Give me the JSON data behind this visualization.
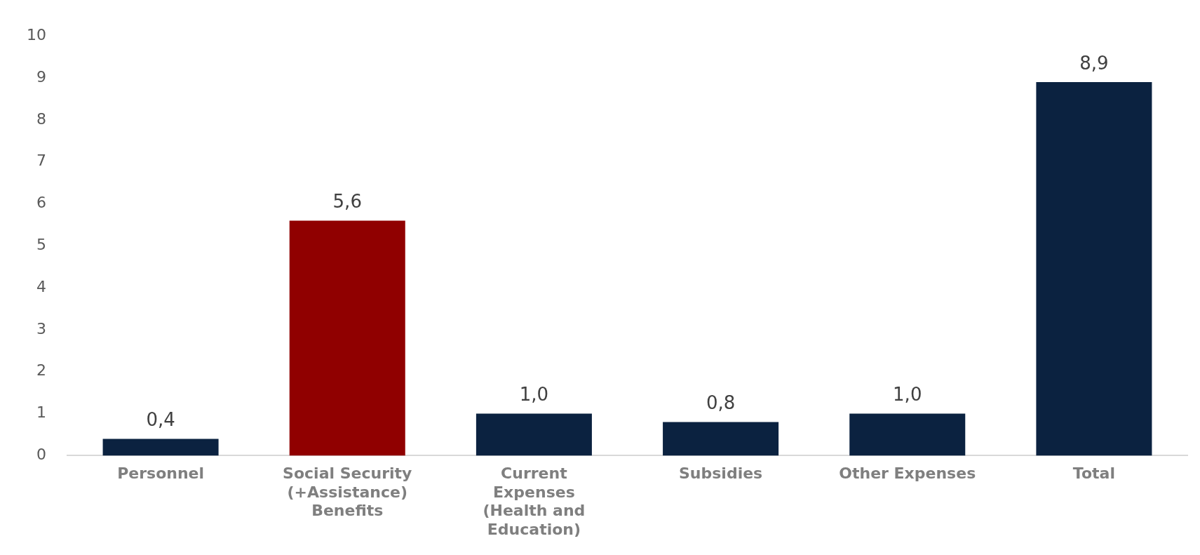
{
  "chart_data": {
    "type": "bar",
    "categories": [
      "Personnel",
      "Social Security (+Assistance) Benefits",
      "Current Expenses (Health and Education)",
      "Subsidies",
      "Other Expenses",
      "Total"
    ],
    "values": [
      0.4,
      5.6,
      1.0,
      0.8,
      1.0,
      8.9
    ],
    "colors": [
      "#0b2240",
      "#900000",
      "#0b2240",
      "#0b2240",
      "#0b2240",
      "#0b2240"
    ],
    "value_labels": [
      "0,4",
      "5,6",
      "1,0",
      "0,8",
      "1,0",
      "8,9"
    ],
    "ylim": [
      0,
      10
    ],
    "yticks": [
      0,
      1,
      2,
      3,
      4,
      5,
      6,
      7,
      8,
      9,
      10
    ],
    "grid": false,
    "legend": false
  }
}
